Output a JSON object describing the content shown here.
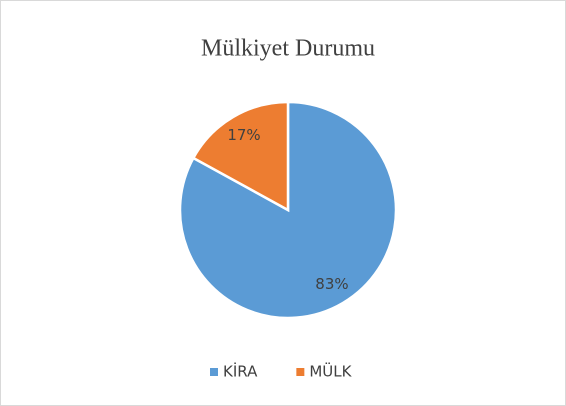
{
  "chart_data": {
    "type": "pie",
    "title": "Mülkiyet Durumu",
    "categories": [
      "KİRA",
      "MÜLK"
    ],
    "values": [
      83,
      17
    ],
    "value_labels": [
      "83%",
      "17%"
    ],
    "colors": [
      "#5b9bd5",
      "#ed7d31"
    ],
    "legend": "bottom"
  }
}
